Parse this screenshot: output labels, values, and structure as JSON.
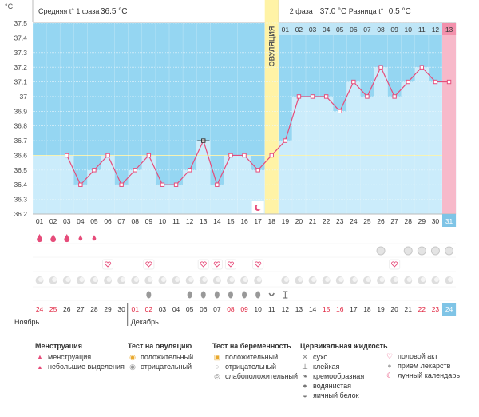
{
  "header": {
    "unit": "°C",
    "phase1_label": "Средняя t° 1 фаза",
    "phase1_value": "36.5 °C",
    "phase2_label": "2 фаза",
    "phase2_value": "37.0 °C",
    "diff_label": "Разница t°",
    "diff_value": "0.5 °C"
  },
  "ovulation_label": "ОВУЛЯЦИЯ",
  "colors": {
    "sky": "#95d6f2",
    "bar": "#cbecfb",
    "line": "#e64c7a",
    "ovulation": "#fff3a6",
    "pink": "#f7b9ca",
    "today": "#7fc4e6",
    "grid": "#cfcfcf"
  },
  "chart_data": {
    "type": "line",
    "title": "",
    "xlabel": "",
    "ylabel": "°C",
    "ylim": [
      36.2,
      37.5
    ],
    "yticks": [
      "37.5",
      "37.4",
      "37.3",
      "37.2",
      "37.1",
      "37",
      "36.9",
      "36.8",
      "36.7",
      "36.6",
      "36.5",
      "36.4",
      "36.3",
      "36.2"
    ],
    "x": [
      "01",
      "02",
      "03",
      "04",
      "05",
      "06",
      "07",
      "08",
      "09",
      "10",
      "11",
      "12",
      "13",
      "14",
      "15",
      "16",
      "17",
      "18",
      "19",
      "20",
      "21",
      "22",
      "23",
      "24",
      "25",
      "26",
      "27",
      "28",
      "29",
      "30",
      "31"
    ],
    "series": [
      {
        "values": [
          null,
          null,
          36.6,
          36.4,
          36.5,
          36.6,
          36.4,
          36.5,
          36.6,
          36.4,
          36.4,
          36.5,
          36.7,
          36.4,
          36.6,
          36.6,
          36.5,
          36.6,
          36.7,
          37.0,
          37.0,
          37.0,
          36.9,
          37.1,
          37.0,
          37.2,
          37.0,
          37.1,
          37.2,
          37.1,
          37.1
        ]
      }
    ],
    "coverline": 36.6,
    "ovulation_day": "18",
    "phase2_numbers": [
      "01",
      "02",
      "03",
      "04",
      "05",
      "06",
      "07",
      "08",
      "09",
      "10",
      "11",
      "12",
      "13"
    ],
    "top_pink_number": "13",
    "today_day": "31"
  },
  "rows": {
    "menstruation": [
      "full",
      "full",
      "full",
      "light",
      "light"
    ],
    "sex_days": [
      "06",
      "09",
      "13",
      "14",
      "15",
      "17",
      "27"
    ],
    "ovtest_days": [
      "26",
      "28",
      "29",
      "30",
      "31"
    ],
    "calendar_days": [
      "01",
      "02",
      "03",
      "04",
      "05",
      "06",
      "07",
      "08",
      "09",
      "10",
      "11",
      "12",
      "13",
      "14",
      "15",
      "16",
      "17",
      "19",
      "20",
      "21",
      "22",
      "23",
      "24",
      "25",
      "26",
      "27",
      "28",
      "29",
      "30",
      "31"
    ],
    "fluid_egg": [
      "09",
      "12",
      "13",
      "14",
      "15",
      "16",
      "17"
    ],
    "fluid_creamy_days": [
      "18"
    ],
    "fluid_sticky_days": [
      "19"
    ]
  },
  "dates": [
    "24",
    "25",
    "26",
    "27",
    "28",
    "29",
    "30",
    "01",
    "02",
    "03",
    "04",
    "05",
    "06",
    "07",
    "08",
    "09",
    "10",
    "11",
    "12",
    "13",
    "14",
    "15",
    "16",
    "17",
    "18",
    "19",
    "20",
    "21",
    "22",
    "23",
    "24"
  ],
  "red_dates": [
    "24",
    "25",
    "01",
    "02",
    "08",
    "09",
    "15",
    "16",
    "22",
    "23"
  ],
  "months": {
    "left": "Ноябрь",
    "right": "Декабрь"
  },
  "legend": {
    "menstruation": {
      "title": "Менструация",
      "items": [
        "менструация",
        "небольшие выделения"
      ]
    },
    "ovtest": {
      "title": "Тест на овуляцию",
      "items": [
        "положительный",
        "отрицательный"
      ]
    },
    "pregtest": {
      "title": "Тест на беременность",
      "items": [
        "положительный",
        "отрицательный",
        "слабоположительный"
      ]
    },
    "cervical": {
      "title": "Цервикальная жидкость",
      "items": [
        "сухо",
        "клейкая",
        "кремообразная",
        "водянистая",
        "яичный белок"
      ]
    },
    "other": {
      "items": [
        "половой акт",
        "прием лекарств",
        "лунный календарь"
      ]
    }
  }
}
